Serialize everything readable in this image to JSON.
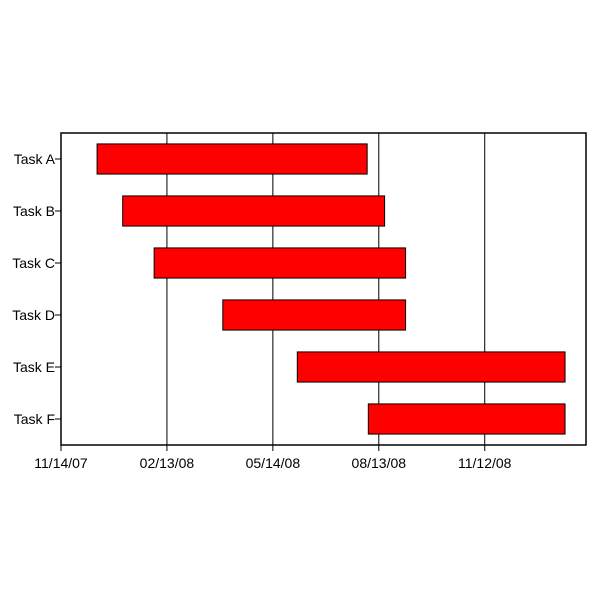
{
  "chart_data": {
    "type": "gantt",
    "title": "",
    "xlabel": "",
    "ylabel": "",
    "x_type": "date",
    "x_range": [
      "11/14/07",
      "02/07/09"
    ],
    "x_tick_labels": [
      "11/14/07",
      "02/13/08",
      "05/14/08",
      "08/13/08",
      "11/12/08"
    ],
    "grid": {
      "vertical": true,
      "horizontal": false
    },
    "bar_color": "#ff0000",
    "bar_border_color": "#000000",
    "tasks": [
      {
        "name": "Task A",
        "start": "12/15/07",
        "end": "08/03/08"
      },
      {
        "name": "Task B",
        "start": "01/06/08",
        "end": "08/18/08"
      },
      {
        "name": "Task C",
        "start": "02/02/08",
        "end": "09/05/08"
      },
      {
        "name": "Task D",
        "start": "04/01/08",
        "end": "09/05/08"
      },
      {
        "name": "Task E",
        "start": "06/04/08",
        "end": "01/20/09"
      },
      {
        "name": "Task F",
        "start": "08/04/08",
        "end": "01/20/09"
      }
    ]
  }
}
